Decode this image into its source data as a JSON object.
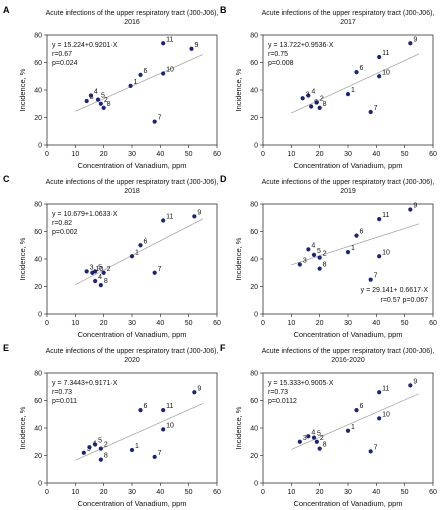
{
  "chart_data": [
    {
      "panel": "A",
      "type": "scatter",
      "title": "Acute infections of the upper respiratory tract (J00-J06),",
      "title2": "2016",
      "xlabel": "Concentration of Vanadium, ppm",
      "ylabel": "Incidence, %",
      "xlim": [
        0,
        60
      ],
      "ylim": [
        0,
        80
      ],
      "xticks": [
        0,
        10,
        20,
        30,
        40,
        50,
        60
      ],
      "yticks": [
        0,
        20,
        40,
        60,
        80
      ],
      "grid": false,
      "annotation": [
        "y = 15.224+0.9201·X",
        "r=0.67",
        "p=0.024"
      ],
      "annotation_pos": "top-left",
      "trendline": {
        "intercept": 15.224,
        "slope": 0.9201,
        "x_range": [
          10,
          55
        ]
      },
      "points": [
        {
          "label": "1",
          "x": 29.5,
          "y": 43
        },
        {
          "label": "2",
          "x": 19,
          "y": 30
        },
        {
          "label": "3",
          "x": 14,
          "y": 32
        },
        {
          "label": "4",
          "x": 15.5,
          "y": 36
        },
        {
          "label": "5",
          "x": 18,
          "y": 33
        },
        {
          "label": "6",
          "x": 33,
          "y": 51
        },
        {
          "label": "7",
          "x": 38,
          "y": 17
        },
        {
          "label": "8",
          "x": 20,
          "y": 27
        },
        {
          "label": "9",
          "x": 51,
          "y": 70
        },
        {
          "label": "10",
          "x": 41,
          "y": 52
        },
        {
          "label": "11",
          "x": 41,
          "y": 74
        }
      ]
    },
    {
      "panel": "B",
      "type": "scatter",
      "title": "Acute infections of the upper respiratory tract (J00-J06),",
      "title2": "2017",
      "xlabel": "Concentration of Vanadium, ppm",
      "ylabel": "Incidence, %",
      "xlim": [
        0,
        60
      ],
      "ylim": [
        0,
        80
      ],
      "xticks": [
        0,
        10,
        20,
        30,
        40,
        50,
        60
      ],
      "yticks": [
        0,
        20,
        40,
        60,
        80
      ],
      "grid": false,
      "annotation": [
        "y = 13.722+0.9536·X",
        "r=0.75",
        "p=0.008"
      ],
      "annotation_pos": "top-left",
      "trendline": {
        "intercept": 13.722,
        "slope": 0.9536,
        "x_range": [
          10,
          55
        ]
      },
      "points": [
        {
          "label": "1",
          "x": 30,
          "y": 37
        },
        {
          "label": "2",
          "x": 19,
          "y": 31
        },
        {
          "label": "3",
          "x": 14,
          "y": 34
        },
        {
          "label": "4",
          "x": 16,
          "y": 36
        },
        {
          "label": "5",
          "x": 17,
          "y": 28
        },
        {
          "label": "6",
          "x": 33,
          "y": 53
        },
        {
          "label": "7",
          "x": 38,
          "y": 24
        },
        {
          "label": "8",
          "x": 20,
          "y": 27
        },
        {
          "label": "9",
          "x": 52,
          "y": 74
        },
        {
          "label": "10",
          "x": 41,
          "y": 50
        },
        {
          "label": "11",
          "x": 41,
          "y": 64
        }
      ]
    },
    {
      "panel": "C",
      "type": "scatter",
      "title": "Acute infections of the upper respiratory tract (J00-J06),",
      "title2": "2018",
      "xlabel": "Concentration of Vanadium, ppm",
      "ylabel": "Incidence, %",
      "xlim": [
        0,
        60
      ],
      "ylim": [
        0,
        80
      ],
      "xticks": [
        0,
        10,
        20,
        30,
        40,
        50,
        60
      ],
      "yticks": [
        0,
        20,
        40,
        60,
        80
      ],
      "grid": false,
      "annotation": [
        "y = 10.679+1.0633·X",
        "r=0.82",
        "p=0.002"
      ],
      "annotation_pos": "top-left",
      "trendline": {
        "intercept": 10.679,
        "slope": 1.0633,
        "x_range": [
          10,
          55
        ]
      },
      "points": [
        {
          "label": "1",
          "x": 30,
          "y": 42
        },
        {
          "label": "2",
          "x": 20,
          "y": 30
        },
        {
          "label": "3",
          "x": 14,
          "y": 31
        },
        {
          "label": "4",
          "x": 17,
          "y": 24
        },
        {
          "label": "5",
          "x": 17,
          "y": 31
        },
        {
          "label": "6",
          "x": 33,
          "y": 50
        },
        {
          "label": "7",
          "x": 38,
          "y": 30
        },
        {
          "label": "8",
          "x": 19,
          "y": 21
        },
        {
          "label": "9",
          "x": 52,
          "y": 71
        },
        {
          "label": "10",
          "x": 16,
          "y": 30
        },
        {
          "label": "11",
          "x": 41,
          "y": 68
        }
      ]
    },
    {
      "panel": "D",
      "type": "scatter",
      "title": "Acute infections of the upper respiratory tract (J00-J06),",
      "title2": "2019",
      "xlabel": "Concentration of Vanadium, ppm",
      "ylabel": "Incidence, %",
      "xlim": [
        0,
        60
      ],
      "ylim": [
        0,
        80
      ],
      "xticks": [
        0,
        10,
        20,
        30,
        40,
        50,
        60
      ],
      "yticks": [
        0,
        20,
        40,
        60,
        80
      ],
      "grid": false,
      "annotation": [
        "y = 29.141+ 0.6617·X",
        "r=0.57  p=0.067"
      ],
      "annotation_pos": "bottom-right",
      "trendline": {
        "intercept": 29.141,
        "slope": 0.6617,
        "x_range": [
          10,
          55
        ]
      },
      "points": [
        {
          "label": "3",
          "x": 13,
          "y": 36
        },
        {
          "label": "4",
          "x": 16,
          "y": 47
        },
        {
          "label": "5",
          "x": 18,
          "y": 43
        },
        {
          "label": "2",
          "x": 20,
          "y": 41
        },
        {
          "label": "8",
          "x": 20,
          "y": 33
        },
        {
          "label": "1",
          "x": 30,
          "y": 45
        },
        {
          "label": "6",
          "x": 33,
          "y": 57
        },
        {
          "label": "7",
          "x": 38,
          "y": 25
        },
        {
          "label": "10",
          "x": 41,
          "y": 42
        },
        {
          "label": "11",
          "x": 41,
          "y": 69
        },
        {
          "label": "9",
          "x": 52,
          "y": 76
        }
      ]
    },
    {
      "panel": "E",
      "type": "scatter",
      "title": "Acute infections of the upper respiratory tract (J00-J06),",
      "title2": "2020",
      "xlabel": "Concentration of Vanadium, ppm",
      "ylabel": "Incidence, %",
      "xlim": [
        0,
        60
      ],
      "ylim": [
        0,
        80
      ],
      "xticks": [
        0,
        10,
        20,
        30,
        40,
        50,
        60
      ],
      "yticks": [
        0,
        20,
        40,
        60,
        80
      ],
      "grid": false,
      "annotation": [
        "y = 7.3443+0.9171·X",
        "r=0.73",
        "p=0.011"
      ],
      "annotation_pos": "top-left",
      "trendline": {
        "intercept": 7.3443,
        "slope": 0.9171,
        "x_range": [
          10,
          55
        ]
      },
      "points": [
        {
          "label": "1",
          "x": 30,
          "y": 24
        },
        {
          "label": "2",
          "x": 19,
          "y": 25
        },
        {
          "label": "3",
          "x": 13,
          "y": 22
        },
        {
          "label": "4",
          "x": 15,
          "y": 26
        },
        {
          "label": "5",
          "x": 17,
          "y": 28
        },
        {
          "label": "6",
          "x": 33,
          "y": 53
        },
        {
          "label": "7",
          "x": 38,
          "y": 19
        },
        {
          "label": "8",
          "x": 19,
          "y": 17
        },
        {
          "label": "9",
          "x": 52,
          "y": 66
        },
        {
          "label": "10",
          "x": 41,
          "y": 39
        },
        {
          "label": "11",
          "x": 41,
          "y": 53
        }
      ]
    },
    {
      "panel": "F",
      "type": "scatter",
      "title": "Acute infections of the upper respiratory tract (J00-J06),",
      "title2": "2016-2020",
      "xlabel": "Concentration of Vanadium, ppm",
      "ylabel": "Incidence, %",
      "xlim": [
        0,
        60
      ],
      "ylim": [
        0,
        80
      ],
      "xticks": [
        0,
        10,
        20,
        30,
        40,
        50,
        60
      ],
      "yticks": [
        0,
        20,
        40,
        60,
        80
      ],
      "grid": false,
      "annotation": [
        "y = 15.333+0.9005·X",
        "r=0.73",
        "p=0.0112"
      ],
      "annotation_pos": "top-left",
      "trendline": {
        "intercept": 15.333,
        "slope": 0.9005,
        "x_range": [
          10,
          55
        ]
      },
      "points": [
        {
          "label": "1",
          "x": 30,
          "y": 38
        },
        {
          "label": "2",
          "x": 19,
          "y": 30
        },
        {
          "label": "3",
          "x": 13,
          "y": 30
        },
        {
          "label": "4",
          "x": 16,
          "y": 34
        },
        {
          "label": "5",
          "x": 18,
          "y": 33
        },
        {
          "label": "6",
          "x": 33,
          "y": 53
        },
        {
          "label": "7",
          "x": 38,
          "y": 23
        },
        {
          "label": "8",
          "x": 20,
          "y": 25
        },
        {
          "label": "9",
          "x": 52,
          "y": 71
        },
        {
          "label": "10",
          "x": 41,
          "y": 47
        },
        {
          "label": "11",
          "x": 41,
          "y": 66
        }
      ]
    }
  ],
  "colors": {
    "point": "#1a237e",
    "trend": "#a8a8a8",
    "axis": "#333333",
    "text": "#111111",
    "panel_letter": "#000000"
  }
}
